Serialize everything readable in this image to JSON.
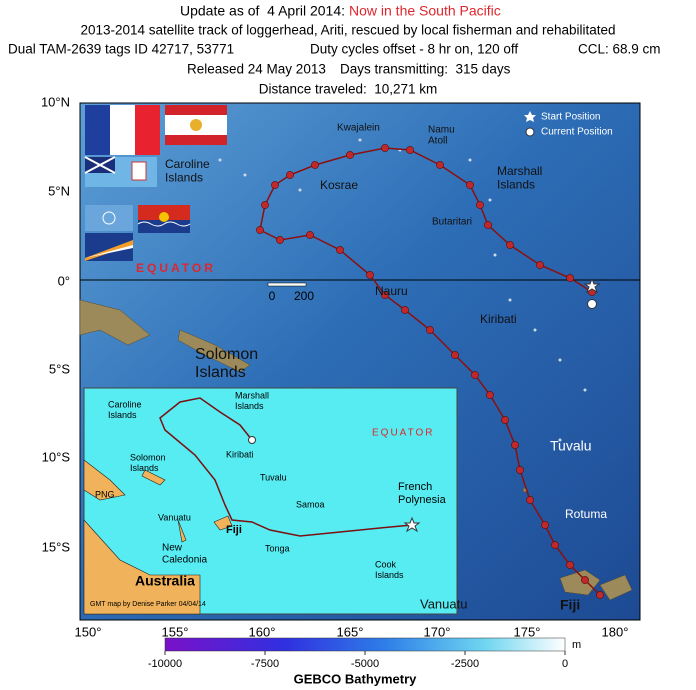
{
  "header": {
    "update": "Update as of  4 April 2014:",
    "status": "Now in the South Pacific",
    "line2": "2013-2014 satellite track of loggerhead, Ariti, rescued by local fisherman and rehabilitated",
    "tags": "Dual TAM-2639 tags ID 42717, 53771",
    "duty": "Duty cycles offset - 8 hr on, 120 off",
    "ccl": "CCL: 68.9 cm",
    "released": "Released 24 May 2013",
    "days": "Days transmitting:  315 days",
    "distance": "Distance traveled:  10,271 km"
  },
  "lat_labels": [
    "10°N",
    "5°N",
    "0°",
    "5°S",
    "10°S",
    "15°S"
  ],
  "lon_labels": [
    "150°",
    "155°",
    "160°",
    "165°",
    "170°",
    "175°",
    "180°"
  ],
  "legend": {
    "start": "Start Position",
    "current": "Current Position"
  },
  "equator": "EQUATOR",
  "scale": [
    "0",
    "200"
  ],
  "map_labels": [
    [
      "Caroline",
      "Islands"
    ],
    [
      "Kosrae"
    ],
    [
      "Kwajalein"
    ],
    [
      "Namu",
      "Atoll"
    ],
    [
      "Marshall",
      "Islands"
    ],
    [
      "Butaritari"
    ],
    [
      "Nauru"
    ],
    [
      "Kiribati"
    ],
    [
      "Solomon",
      "Islands"
    ],
    [
      "Tuvalu"
    ],
    [
      "Rotuma"
    ],
    [
      "Vanuatu"
    ],
    [
      "Fiji"
    ]
  ],
  "inset": {
    "labels": [
      [
        "Caroline",
        "Islands"
      ],
      [
        "Marshall",
        "Islands"
      ],
      [
        "Kiribati"
      ],
      [
        "Tuvalu"
      ],
      [
        "Solomon",
        "Islands"
      ],
      [
        "PNG"
      ],
      [
        "Vanuatu"
      ],
      [
        "New",
        "Caledonia"
      ],
      [
        "Fiji"
      ],
      [
        "Samoa"
      ],
      [
        "Tonga"
      ],
      [
        "Cook",
        "Islands"
      ],
      [
        "French",
        "Polynesia"
      ],
      [
        "Australia"
      ]
    ],
    "equator": "EQUATOR",
    "credit": "GMT map by Denise Parker 04/04/14"
  },
  "colorbar": {
    "ticks": [
      "-10000",
      "-7500",
      "-5000",
      "-2500",
      "0"
    ],
    "unit": "m",
    "title": "GEBCO Bathymetry"
  }
}
